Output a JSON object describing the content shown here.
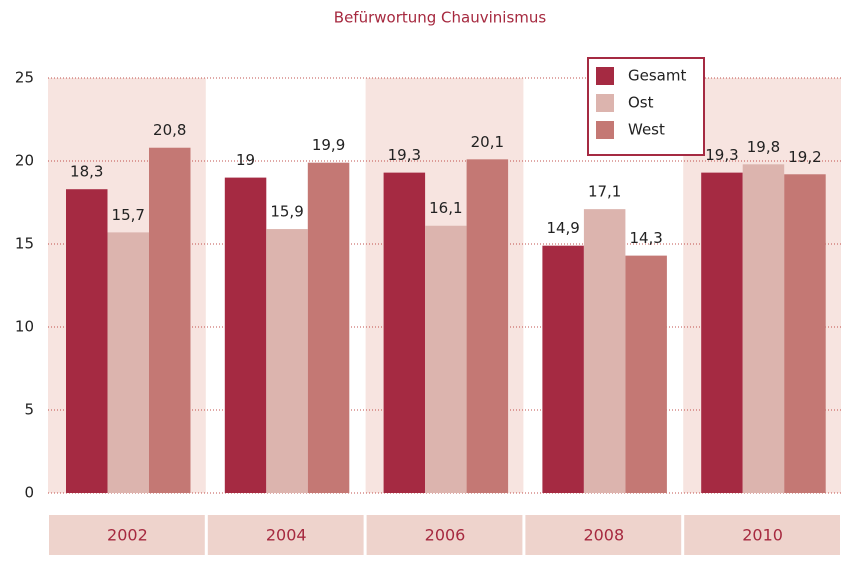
{
  "chart_data": {
    "type": "bar",
    "title": "Befürwortung Chauvinismus",
    "categories": [
      "2002",
      "2004",
      "2006",
      "2008",
      "2010"
    ],
    "series": [
      {
        "name": "Gesamt",
        "color": "#a52a42",
        "values": [
          18.3,
          19,
          19.3,
          14.9,
          19.3
        ],
        "value_labels": [
          "18,3",
          "19",
          "19,3",
          "14,9",
          "19,3"
        ]
      },
      {
        "name": "Ost",
        "color": "#dcb4ae",
        "values": [
          15.7,
          15.9,
          16.1,
          17.1,
          19.8
        ],
        "value_labels": [
          "15,7",
          "15,9",
          "16,1",
          "17,1",
          "19,8"
        ]
      },
      {
        "name": "West",
        "color": "#c47874",
        "values": [
          20.8,
          19.9,
          20.1,
          14.3,
          19.2
        ],
        "value_labels": [
          "20,8",
          "19,9",
          "20,1",
          "14,3",
          "19,2"
        ]
      }
    ],
    "ylim": [
      0,
      25
    ],
    "yticks": [
      0,
      5,
      10,
      15,
      20,
      25
    ],
    "grid": true,
    "legend": "top-right"
  }
}
